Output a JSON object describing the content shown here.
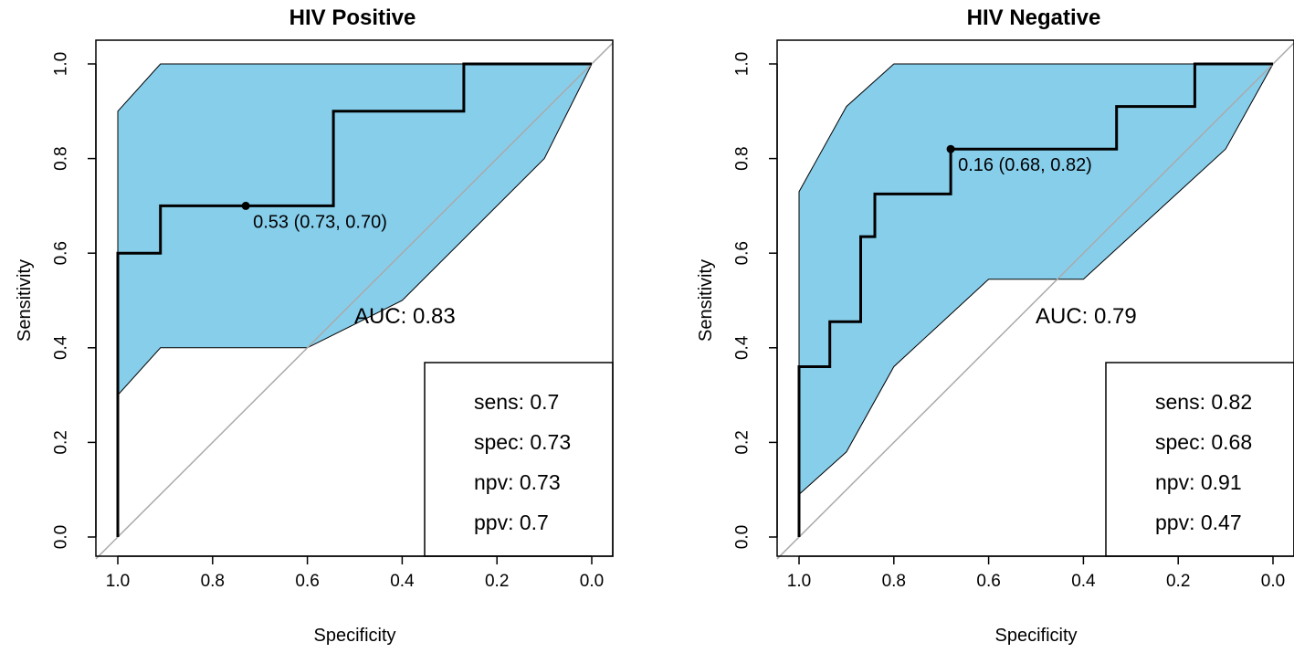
{
  "chart_data": [
    {
      "type": "line",
      "title": "HIV Positive",
      "xlabel": "Specificity",
      "ylabel": "Sensitivity",
      "xlim": [
        1.0,
        0.0
      ],
      "ylim": [
        0.0,
        1.0
      ],
      "xticks": [
        "1.0",
        "0.8",
        "0.6",
        "0.4",
        "0.2",
        "0.0"
      ],
      "yticks": [
        "0.0",
        "0.2",
        "0.4",
        "0.6",
        "0.8",
        "1.0"
      ],
      "colors": {
        "ci": "#87ceeb",
        "roc": "#000000",
        "diagonal": "#aaaaaa"
      },
      "ci_upper": [
        [
          1.0,
          0.9
        ],
        [
          0.91,
          1.0
        ],
        [
          0.0,
          1.0
        ]
      ],
      "ci_lower": [
        [
          1.0,
          0.3
        ],
        [
          0.91,
          0.4
        ],
        [
          0.6,
          0.4
        ],
        [
          0.4,
          0.5
        ],
        [
          0.1,
          0.8
        ],
        [
          0.0,
          1.0
        ]
      ],
      "roc": [
        [
          1.0,
          0.0
        ],
        [
          1.0,
          0.6
        ],
        [
          0.91,
          0.6
        ],
        [
          0.91,
          0.7
        ],
        [
          0.545,
          0.7
        ],
        [
          0.545,
          0.9
        ],
        [
          0.27,
          0.9
        ],
        [
          0.27,
          1.0
        ],
        [
          0.0,
          1.0
        ]
      ],
      "threshold_point": {
        "specificity": 0.73,
        "sensitivity": 0.7,
        "label": "0.53 (0.73, 0.70)"
      },
      "auc_label": "AUC: 0.83",
      "metrics": [
        "sens: 0.7",
        "spec: 0.73",
        "npv: 0.73",
        "ppv: 0.7"
      ]
    },
    {
      "type": "line",
      "title": "HIV Negative",
      "xlabel": "Specificity",
      "ylabel": "Sensitivity",
      "xlim": [
        1.0,
        0.0
      ],
      "ylim": [
        0.0,
        1.0
      ],
      "xticks": [
        "1.0",
        "0.8",
        "0.6",
        "0.4",
        "0.2",
        "0.0"
      ],
      "yticks": [
        "0.0",
        "0.2",
        "0.4",
        "0.6",
        "0.8",
        "1.0"
      ],
      "colors": {
        "ci": "#87ceeb",
        "roc": "#000000",
        "diagonal": "#aaaaaa"
      },
      "ci_upper": [
        [
          1.0,
          0.73
        ],
        [
          0.9,
          0.91
        ],
        [
          0.8,
          1.0
        ],
        [
          0.0,
          1.0
        ]
      ],
      "ci_lower": [
        [
          1.0,
          0.09
        ],
        [
          0.9,
          0.18
        ],
        [
          0.8,
          0.36
        ],
        [
          0.6,
          0.545
        ],
        [
          0.4,
          0.545
        ],
        [
          0.1,
          0.82
        ],
        [
          0.0,
          1.0
        ]
      ],
      "roc": [
        [
          1.0,
          0.0
        ],
        [
          1.0,
          0.36
        ],
        [
          0.935,
          0.36
        ],
        [
          0.935,
          0.455
        ],
        [
          0.87,
          0.455
        ],
        [
          0.87,
          0.635
        ],
        [
          0.84,
          0.635
        ],
        [
          0.84,
          0.725
        ],
        [
          0.68,
          0.725
        ],
        [
          0.68,
          0.82
        ],
        [
          0.33,
          0.82
        ],
        [
          0.33,
          0.91
        ],
        [
          0.165,
          0.91
        ],
        [
          0.165,
          1.0
        ],
        [
          0.0,
          1.0
        ]
      ],
      "threshold_point": {
        "specificity": 0.68,
        "sensitivity": 0.82,
        "label": "0.16 (0.68, 0.82)"
      },
      "auc_label": "AUC: 0.79",
      "metrics": [
        "sens: 0.82",
        "spec: 0.68",
        "npv: 0.91",
        "ppv: 0.47"
      ]
    }
  ]
}
